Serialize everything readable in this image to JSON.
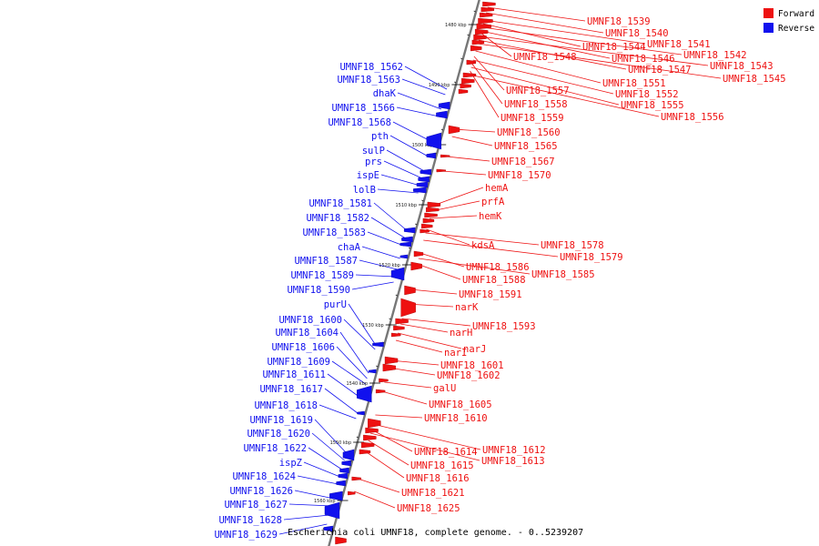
{
  "title": "Escherichia coli UMNF18, complete genome. - 0..5239207",
  "legend": [
    {
      "label": "Forward",
      "color": "#ee1111"
    },
    {
      "label": "Reverse",
      "color": "#1111ee"
    }
  ],
  "colors": {
    "forward": "#ee1111",
    "reverse": "#1111ee",
    "backbone": "#777777"
  },
  "ticks": [
    "1480 kbp",
    "1490 kbp",
    "1500 kbp",
    "1510 kbp",
    "1520 kbp",
    "1530 kbp",
    "1540 kbp",
    "1550 kbp",
    "1560 kbp"
  ],
  "forward_labels": [
    "UMNF18_1539",
    "UMNF18_1540",
    "UMNF18_1541",
    "UMNF18_1544",
    "UMNF18_1542",
    "UMNF18_1546",
    "UMNF18_1548",
    "UMNF18_1543",
    "UMNF18_1547",
    "UMNF18_1545",
    "UMNF18_1551",
    "UMNF18_1557",
    "UMNF18_1552",
    "UMNF18_1558",
    "UMNF18_1555",
    "UMNF18_1559",
    "UMNF18_1556",
    "UMNF18_1560",
    "UMNF18_1565",
    "UMNF18_1567",
    "UMNF18_1570",
    "hemA",
    "prfA",
    "hemK",
    "kdsA",
    "UMNF18_1578",
    "UMNF18_1579",
    "UMNF18_1586",
    "UMNF18_1585",
    "UMNF18_1588",
    "UMNF18_1591",
    "narK",
    "UMNF18_1593",
    "narH",
    "narJ",
    "narI",
    "UMNF18_1601",
    "UMNF18_1602",
    "galU",
    "UMNF18_1605",
    "UMNF18_1610",
    "UMNF18_1612",
    "UMNF18_1614",
    "UMNF18_1613",
    "UMNF18_1615",
    "UMNF18_1616",
    "UMNF18_1621",
    "UMNF18_1625"
  ],
  "reverse_labels": [
    "UMNF18_1562",
    "UMNF18_1563",
    "dhaK",
    "UMNF18_1566",
    "UMNF18_1568",
    "pth",
    "sulP",
    "prs",
    "ispE",
    "lolB",
    "UMNF18_1581",
    "UMNF18_1582",
    "UMNF18_1583",
    "chaA",
    "UMNF18_1587",
    "UMNF18_1589",
    "UMNF18_1590",
    "purU",
    "UMNF18_1600",
    "UMNF18_1604",
    "UMNF18_1606",
    "UMNF18_1609",
    "UMNF18_1611",
    "UMNF18_1617",
    "UMNF18_1618",
    "UMNF18_1619",
    "UMNF18_1620",
    "UMNF18_1622",
    "ispZ",
    "UMNF18_1624",
    "UMNF18_1626",
    "UMNF18_1627",
    "UMNF18_1628",
    "UMNF18_1629"
  ]
}
